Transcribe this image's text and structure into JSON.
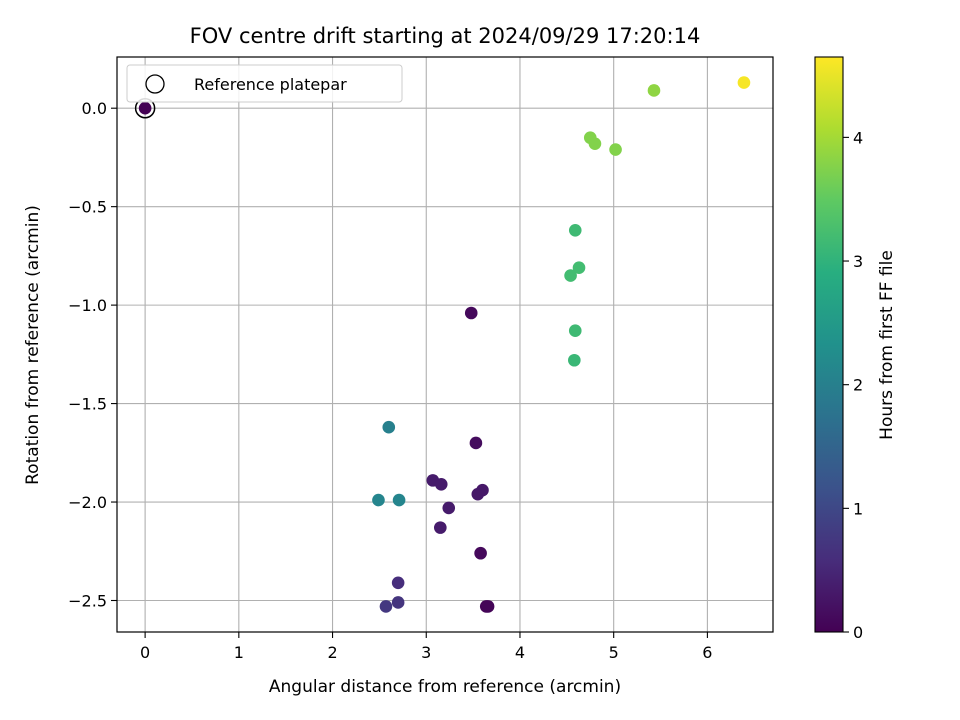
{
  "chart_data": {
    "type": "scatter",
    "title": "FOV centre drift starting at 2024/09/29 17:20:14",
    "xlabel": "Angular distance from reference (arcmin)",
    "ylabel": "Rotation from reference (arcmin)",
    "xlim": [
      -0.3,
      6.7
    ],
    "ylim": [
      -2.66,
      0.26
    ],
    "xticks": [
      0,
      1,
      2,
      3,
      4,
      5,
      6
    ],
    "yticks": [
      0.0,
      -0.5,
      -1.0,
      -1.5,
      -2.0,
      -2.5
    ],
    "xtick_labels": [
      "0",
      "1",
      "2",
      "3",
      "4",
      "5",
      "6"
    ],
    "ytick_labels": [
      "0.0",
      "−0.5",
      "−1.0",
      "−1.5",
      "−2.0",
      "−2.5"
    ],
    "grid": true,
    "legend": {
      "placement": "top-left",
      "label": "Reference platepar"
    },
    "reference_point": {
      "x": 0,
      "y": 0
    },
    "colormap": "viridis",
    "colorbar": {
      "label": "Hours from first FF file",
      "range": [
        0,
        4.65
      ],
      "ticks": [
        0,
        1,
        2,
        3,
        4
      ],
      "tick_labels": [
        "0",
        "1",
        "2",
        "3",
        "4"
      ]
    },
    "series": [
      {
        "points": [
          {
            "x": 0.0,
            "y": 0.0,
            "c": 0.0
          },
          {
            "x": 3.48,
            "y": -1.04,
            "c": 0.1
          },
          {
            "x": 3.53,
            "y": -1.7,
            "c": 0.15
          },
          {
            "x": 3.07,
            "y": -1.89,
            "c": 0.35
          },
          {
            "x": 3.16,
            "y": -1.91,
            "c": 0.35
          },
          {
            "x": 3.55,
            "y": -1.96,
            "c": 0.3
          },
          {
            "x": 3.6,
            "y": -1.94,
            "c": 0.3
          },
          {
            "x": 3.24,
            "y": -2.03,
            "c": 0.35
          },
          {
            "x": 3.15,
            "y": -2.13,
            "c": 0.35
          },
          {
            "x": 3.58,
            "y": -2.26,
            "c": 0.1
          },
          {
            "x": 3.64,
            "y": -2.53,
            "c": 0.05
          },
          {
            "x": 3.66,
            "y": -2.53,
            "c": 0.05
          },
          {
            "x": 2.7,
            "y": -2.41,
            "c": 0.6
          },
          {
            "x": 2.7,
            "y": -2.51,
            "c": 0.7
          },
          {
            "x": 2.57,
            "y": -2.53,
            "c": 0.75
          },
          {
            "x": 2.6,
            "y": -1.62,
            "c": 2.0
          },
          {
            "x": 2.49,
            "y": -1.99,
            "c": 2.1
          },
          {
            "x": 2.71,
            "y": -1.99,
            "c": 2.1
          },
          {
            "x": 4.59,
            "y": -0.62,
            "c": 3.15
          },
          {
            "x": 4.63,
            "y": -0.81,
            "c": 3.2
          },
          {
            "x": 4.54,
            "y": -0.85,
            "c": 3.2
          },
          {
            "x": 4.59,
            "y": -1.13,
            "c": 3.15
          },
          {
            "x": 4.58,
            "y": -1.28,
            "c": 3.1
          },
          {
            "x": 4.75,
            "y": -0.15,
            "c": 3.75
          },
          {
            "x": 4.8,
            "y": -0.18,
            "c": 3.75
          },
          {
            "x": 5.02,
            "y": -0.21,
            "c": 3.75
          },
          {
            "x": 5.43,
            "y": 0.09,
            "c": 3.85
          },
          {
            "x": 6.39,
            "y": 0.13,
            "c": 4.6
          }
        ]
      }
    ]
  }
}
